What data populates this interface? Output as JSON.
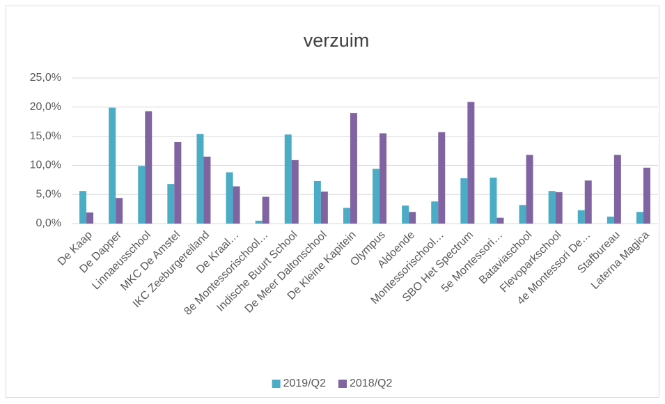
{
  "chart_data": {
    "type": "bar",
    "title": "verzuim",
    "categories": [
      "De Kaap",
      "De Dapper",
      "Linnaeusschool",
      "MKC De Amstel",
      "IKC Zeeburgereiland",
      "De Kraal…",
      "8e Montessorischool…",
      "Indische Buurt School",
      "De Meer Daltonschool",
      "De Kleine Kapitein",
      "Olympus",
      "Aldoende",
      "Montessorischool…",
      "SBO Het Spectrum",
      "5e Montessori…",
      "Bataviaschool",
      "Flevoparkschool",
      "4e Montessori De…",
      "Stafbureau",
      "Laterna Magica"
    ],
    "series": [
      {
        "name": "2019/Q2",
        "color": "#4bacc6",
        "values": [
          5.6,
          19.9,
          9.9,
          6.8,
          15.4,
          8.8,
          0.5,
          15.3,
          7.3,
          2.7,
          9.4,
          3.1,
          3.8,
          7.8,
          7.9,
          3.2,
          5.6,
          2.3,
          1.2,
          2.0
        ]
      },
      {
        "name": "2018/Q2",
        "color": "#8064a2",
        "values": [
          1.9,
          4.4,
          19.3,
          14.0,
          11.5,
          6.4,
          4.6,
          10.9,
          5.5,
          19.0,
          15.5,
          2.0,
          15.7,
          20.9,
          1.0,
          11.8,
          5.4,
          7.4,
          11.8,
          9.6
        ]
      }
    ],
    "ylim": [
      0,
      25
    ],
    "yticks": [
      {
        "value": 0,
        "label": "0,0%"
      },
      {
        "value": 5,
        "label": "5,0%"
      },
      {
        "value": 10,
        "label": "10,0%"
      },
      {
        "value": 15,
        "label": "15,0%"
      },
      {
        "value": 20,
        "label": "20,0%"
      },
      {
        "value": 25,
        "label": "25,0%"
      }
    ],
    "grid": true,
    "legend": "bottom"
  }
}
